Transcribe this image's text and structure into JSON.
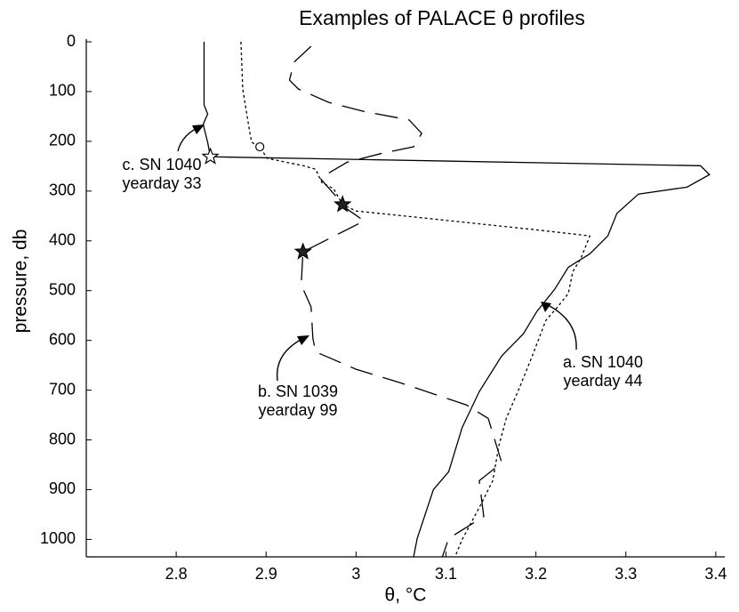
{
  "chart_data": {
    "type": "line",
    "title": "Examples of PALACE θ profiles",
    "x_label": "θ, °C",
    "y_label": "pressure, db",
    "xlim": [
      2.7,
      3.41
    ],
    "ylim": [
      1035,
      0
    ],
    "xticks": [
      2.8,
      2.9,
      3,
      3.1,
      3.2,
      3.3,
      3.4
    ],
    "yticks": [
      0,
      100,
      200,
      300,
      400,
      500,
      600,
      700,
      800,
      900,
      1000
    ],
    "series": [
      {
        "color": "#000000",
        "dash": "solid",
        "x": [
          2.831,
          2.831,
          2.835,
          2.83,
          2.835,
          2.838,
          3.383,
          3.393,
          3.368,
          3.314,
          3.29,
          3.28,
          3.26,
          3.236,
          3.221,
          3.201,
          3.186,
          3.162,
          3.137,
          3.118,
          3.103,
          3.086,
          3.068,
          3.064
        ],
        "y": [
          0,
          127,
          145,
          166,
          202,
          231,
          249,
          267,
          292,
          306,
          345,
          390,
          426,
          453,
          497,
          542,
          587,
          631,
          703,
          775,
          864,
          900,
          998,
          1035
        ]
      },
      {
        "color": "#000000",
        "dash": "dotted",
        "x": [
          2.872,
          2.874,
          2.882,
          2.884,
          2.893,
          2.901,
          2.941,
          2.955,
          2.962,
          2.975,
          2.985,
          3.0,
          3.059,
          3.196,
          3.26,
          3.25,
          3.241,
          3.236,
          3.224,
          3.211,
          3.196,
          3.182,
          3.167,
          3.159,
          3.152,
          3.137,
          3.118,
          3.11
        ],
        "y": [
          0,
          95,
          184,
          202,
          211,
          234,
          249,
          256,
          283,
          295,
          327,
          340,
          351,
          377,
          390,
          435,
          462,
          506,
          533,
          560,
          631,
          694,
          757,
          810,
          882,
          936,
          1000,
          1035
        ]
      },
      {
        "color": "#000000",
        "dash": "dashed",
        "x": [
          2.95,
          2.931,
          2.926,
          2.936,
          2.97,
          3.009,
          3.059,
          3.073,
          3.064,
          3.029,
          2.99,
          2.96,
          2.99,
          3.009,
          2.941,
          2.939,
          2.95,
          2.952,
          2.955,
          3.0,
          3.049,
          3.123,
          3.147,
          3.162,
          3.137,
          3.142,
          3.103,
          3.096
        ],
        "y": [
          9,
          41,
          77,
          95,
          122,
          140,
          157,
          184,
          211,
          224,
          242,
          274,
          336,
          360,
          422,
          488,
          533,
          596,
          623,
          658,
          685,
          730,
          757,
          846,
          882,
          954,
          998,
          1035
        ]
      }
    ],
    "markers": [
      {
        "x": 2.838,
        "y": 231,
        "shape": "open-star"
      },
      {
        "x": 2.893,
        "y": 211,
        "shape": "open-circle"
      },
      {
        "x": 2.985,
        "y": 327,
        "shape": "star"
      },
      {
        "x": 2.941,
        "y": 422,
        "shape": "star"
      }
    ],
    "annotations": [
      {
        "lines": [
          "c. SN 1040",
          "yearday 33"
        ]
      },
      {
        "lines": [
          "b. SN 1039",
          "yearday 99"
        ]
      },
      {
        "lines": [
          "a. SN 1040",
          "yearday 44"
        ]
      }
    ]
  }
}
